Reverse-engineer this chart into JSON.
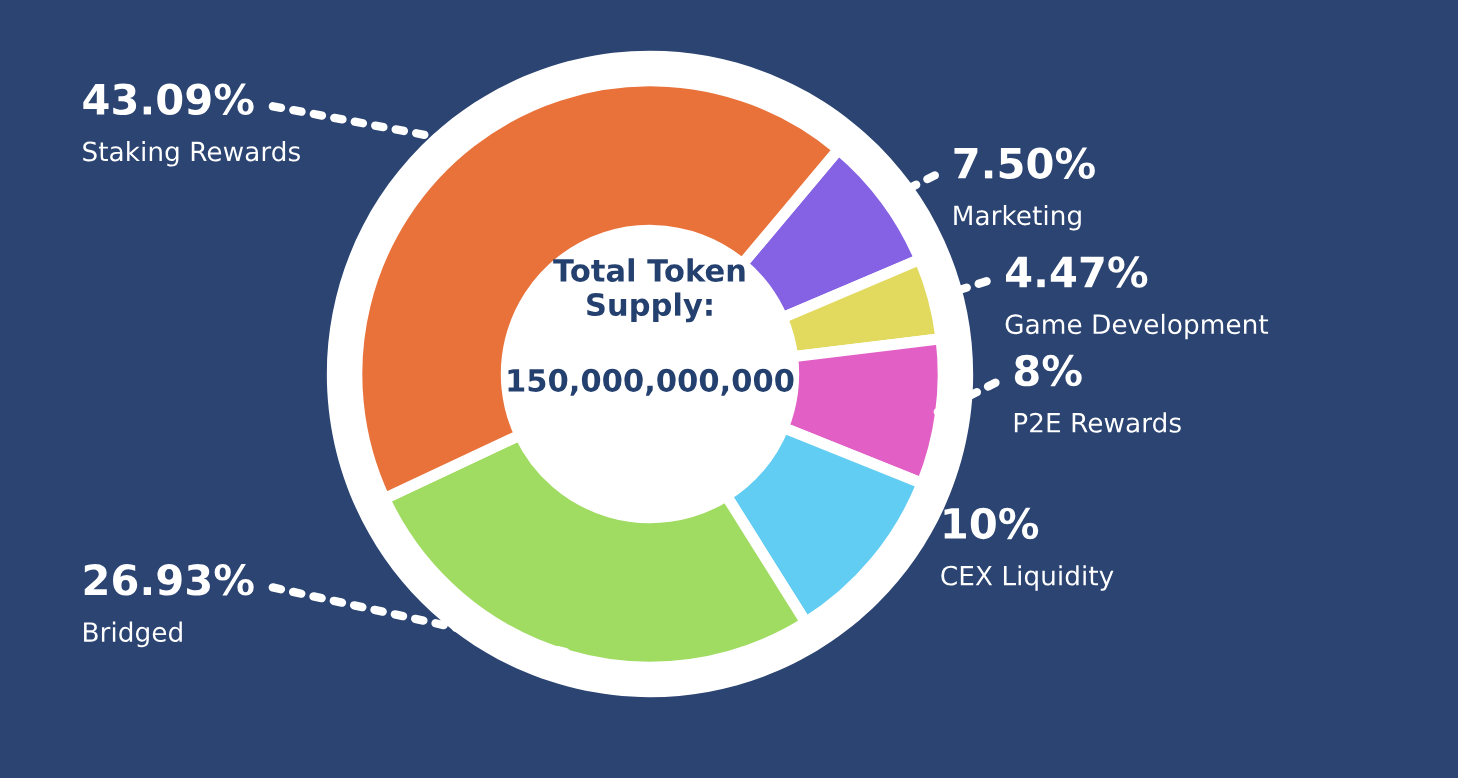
{
  "chart_data": {
    "type": "donut",
    "categories": [
      "Marketing",
      "Game Development",
      "P2E Rewards",
      "CEX Liquidity",
      "Bridged",
      "Staking Rewards"
    ],
    "values": [
      7.5,
      4.47,
      8,
      10,
      26.93,
      43.09
    ],
    "value_labels": [
      "7.50%",
      "4.47%",
      "8%",
      "10%",
      "26.93%",
      "43.09%"
    ],
    "colors": [
      "#8562e3",
      "#e2d95f",
      "#e25fc6",
      "#62cdf2",
      "#a0db62",
      "#e8723a"
    ],
    "annotations": [
      "Total Token\nSupply:",
      "150,000,000,000"
    ]
  }
}
